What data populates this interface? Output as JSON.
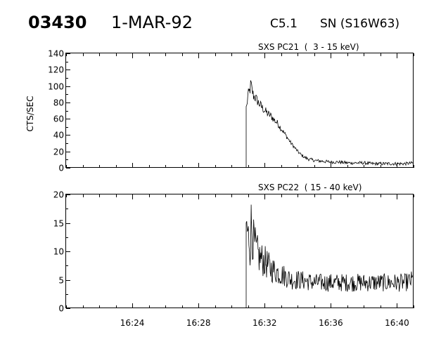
{
  "header": {
    "event_id": "03430",
    "date": "1-MAR-92",
    "flare_class": "C5.1",
    "location": "SN (S16W63)"
  },
  "chart_data": [
    {
      "type": "line",
      "title": "SXS PC21  (  3 - 15 keV)",
      "ylabel": "CTS/SEC",
      "xlabel": "",
      "xlim": [
        "16:20:00",
        "16:41:00"
      ],
      "ylim": [
        0,
        140
      ],
      "yticks": [
        0,
        20,
        40,
        60,
        80,
        100,
        120,
        140
      ],
      "xticks": [
        "16:24",
        "16:28",
        "16:32",
        "16:36",
        "16:40"
      ],
      "series": [
        {
          "x": [
            "16:30:53",
            "16:30:55",
            "16:30:59",
            "16:31:03",
            "16:31:07",
            "16:31:10",
            "16:31:14",
            "16:31:20",
            "16:31:28",
            "16:31:37",
            "16:31:48",
            "16:32:00",
            "16:32:12",
            "16:32:24",
            "16:32:36",
            "16:32:48",
            "16:33:00",
            "16:33:12",
            "16:33:24",
            "16:33:36",
            "16:33:48",
            "16:34:00",
            "16:34:12",
            "16:34:24",
            "16:34:36",
            "16:34:48",
            "16:35:00",
            "16:35:30",
            "16:36:00",
            "16:36:30",
            "16:37:00",
            "16:37:30",
            "16:38:00",
            "16:38:30",
            "16:39:00",
            "16:39:30",
            "16:40:00",
            "16:40:30",
            "16:41:00"
          ],
          "y": [
            0,
            75,
            88,
            92,
            96,
            103,
            95,
            88,
            85,
            80,
            75,
            70,
            66,
            63,
            58,
            54,
            48,
            42,
            36,
            30,
            25,
            20,
            16,
            13,
            11,
            10,
            9,
            8,
            7,
            7,
            6,
            6,
            6,
            5,
            5,
            5,
            5,
            5,
            6
          ]
        }
      ]
    },
    {
      "type": "line",
      "title": "SXS PC22  ( 15 - 40 keV)",
      "ylabel": "",
      "xlabel": "",
      "xlim": [
        "16:20:00",
        "16:41:00"
      ],
      "ylim": [
        0,
        20
      ],
      "yticks": [
        0,
        5,
        10,
        15,
        20
      ],
      "xticks": [
        "16:24",
        "16:28",
        "16:32",
        "16:36",
        "16:40"
      ],
      "series": [
        {
          "x": [
            "16:30:53",
            "16:30:55",
            "16:30:59",
            "16:31:03",
            "16:31:07",
            "16:31:12",
            "16:31:18",
            "16:31:24",
            "16:31:30",
            "16:31:40",
            "16:31:52",
            "16:32:05",
            "16:32:20",
            "16:32:40",
            "16:33:00",
            "16:33:20",
            "16:33:40",
            "16:34:00",
            "16:34:30",
            "16:35:00",
            "16:35:30",
            "16:36:00",
            "16:36:30",
            "16:37:00",
            "16:37:30",
            "16:38:00",
            "16:38:30",
            "16:39:00",
            "16:39:30",
            "16:40:00",
            "16:40:30",
            "16:41:00"
          ],
          "y": [
            0,
            15,
            12,
            13,
            11,
            15.5,
            12,
            11,
            10,
            9,
            8.5,
            8,
            7,
            6.5,
            6,
            5.5,
            5,
            5,
            4.8,
            4.5,
            4.5,
            4.5,
            4.5,
            4.5,
            4.5,
            4.5,
            4.5,
            4.5,
            4.5,
            4.5,
            4.5,
            5
          ]
        }
      ]
    }
  ]
}
